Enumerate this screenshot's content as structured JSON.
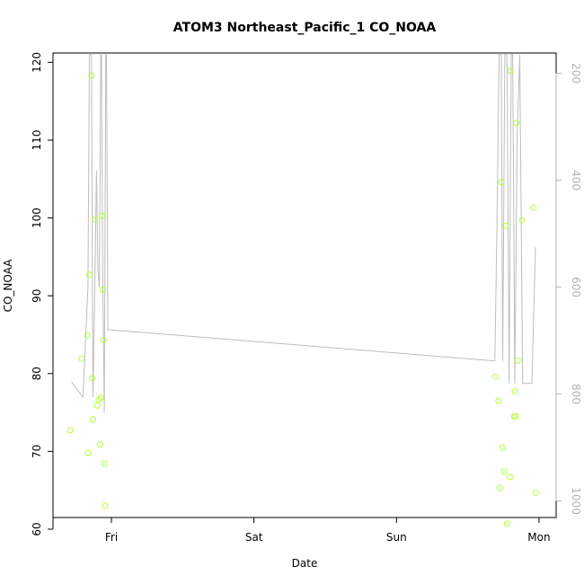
{
  "chart_data": {
    "type": "scatter",
    "title": "ATOM3 Northeast_Pacific_1 CO_NOAA",
    "xlabel": "Date",
    "ylabel": "CO_NOAA",
    "x_ticks": [
      "Fri",
      "Sat",
      "Sun",
      "Mon"
    ],
    "x_tick_days": [
      1,
      2,
      3,
      4
    ],
    "xlim_days": [
      0.59,
      4.12
    ],
    "ylim": [
      61.5,
      121.2
    ],
    "y_ticks": [
      60,
      70,
      80,
      90,
      100,
      110,
      120
    ],
    "y2lim_reversed": [
      1031,
      162
    ],
    "y2_ticks": [
      200,
      400,
      600,
      800,
      1000
    ],
    "grid": false,
    "colors": {
      "points": "#b3ff33",
      "line": "#bdbdbd",
      "right_axis": "#b3b3b3",
      "frame": "#000000"
    },
    "series": [
      {
        "role": "points",
        "axis": "left",
        "x_days": [
          0.71,
          0.79,
          0.83,
          0.835,
          0.845,
          0.86,
          0.865,
          0.87,
          0.885,
          0.9,
          0.91,
          0.92,
          0.925,
          0.935,
          0.94,
          0.945,
          0.95,
          0.955,
          3.695,
          3.715,
          3.725,
          3.735,
          3.745,
          3.755,
          3.765,
          3.775,
          3.795,
          3.8,
          3.825,
          3.83,
          3.835,
          3.84,
          3.85,
          3.88,
          3.96,
          3.975
        ],
        "y": [
          72.7,
          81.9,
          84.9,
          69.8,
          92.7,
          118.3,
          79.4,
          74.1,
          99.8,
          75.9,
          76.6,
          70.9,
          76.9,
          100.3,
          90.8,
          84.3,
          68.4,
          63.0,
          79.6,
          76.5,
          65.3,
          104.6,
          70.5,
          67.4,
          99.0,
          60.7,
          66.7,
          118.9,
          74.5,
          77.7,
          74.5,
          112.2,
          81.7,
          99.7,
          101.3,
          64.7
        ]
      },
      {
        "role": "line",
        "axis": "right",
        "x_days": [
          0.72,
          0.8,
          0.835,
          0.845,
          0.86,
          0.87,
          0.88,
          0.895,
          0.905,
          0.915,
          0.925,
          0.93,
          0.94,
          0.95,
          0.96,
          0.965,
          0.975,
          1.0,
          3.69,
          3.705,
          3.72,
          3.735,
          3.745,
          3.76,
          3.775,
          3.79,
          3.805,
          3.815,
          3.83,
          3.845,
          3.865,
          3.885,
          3.92,
          3.95,
          3.975
        ],
        "y": [
          777,
          806,
          600,
          165,
          165,
          806,
          655,
          382,
          570,
          600,
          165,
          165,
          600,
          835,
          165,
          165,
          680,
          680,
          738,
          480,
          165,
          165,
          738,
          165,
          165,
          780,
          165,
          165,
          780,
          330,
          165,
          780,
          780,
          780,
          525
        ]
      }
    ]
  }
}
